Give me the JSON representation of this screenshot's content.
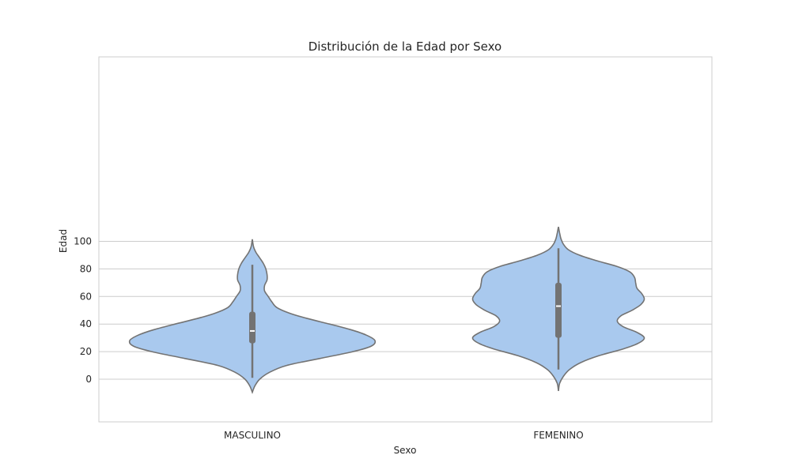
{
  "chart_data": {
    "type": "violin",
    "title": "Distribución de la Edad por Sexo",
    "xlabel": "Sexo",
    "ylabel": "Edad",
    "categories": [
      "MASCULINO",
      "FEMENINO"
    ],
    "yticks": [
      0,
      20,
      40,
      60,
      80,
      100
    ],
    "ylim": [
      -15,
      116
    ],
    "grid": true,
    "colors": {
      "fill": "#a9c9ee",
      "edge": "#737373",
      "box": "#737373",
      "median": "#ffffff",
      "grid": "#cccccc"
    },
    "violins": [
      {
        "category": "MASCULINO",
        "min": 1,
        "q1": 26,
        "median": 35,
        "q3": 49,
        "max": 83,
        "profile": [
          [
            -9.5,
            0.0
          ],
          [
            -5,
            0.02
          ],
          [
            0,
            0.06
          ],
          [
            5,
            0.14
          ],
          [
            10,
            0.28
          ],
          [
            15,
            0.55
          ],
          [
            20,
            0.82
          ],
          [
            24,
            0.97
          ],
          [
            28,
            1.0
          ],
          [
            32,
            0.93
          ],
          [
            36,
            0.8
          ],
          [
            40,
            0.63
          ],
          [
            44,
            0.45
          ],
          [
            48,
            0.3
          ],
          [
            52,
            0.2
          ],
          [
            56,
            0.16
          ],
          [
            60,
            0.13
          ],
          [
            64,
            0.1
          ],
          [
            68,
            0.1
          ],
          [
            72,
            0.12
          ],
          [
            76,
            0.12
          ],
          [
            80,
            0.11
          ],
          [
            84,
            0.09
          ],
          [
            88,
            0.06
          ],
          [
            92,
            0.03
          ],
          [
            96,
            0.01
          ],
          [
            101.5,
            0.0
          ]
        ]
      },
      {
        "category": "FEMENINO",
        "min": 7,
        "q1": 30,
        "median": 53,
        "q3": 70,
        "max": 95,
        "profile": [
          [
            -8.5,
            0.0
          ],
          [
            -3,
            0.01
          ],
          [
            2,
            0.04
          ],
          [
            7,
            0.09
          ],
          [
            12,
            0.18
          ],
          [
            17,
            0.33
          ],
          [
            22,
            0.53
          ],
          [
            26,
            0.65
          ],
          [
            30,
            0.7
          ],
          [
            34,
            0.64
          ],
          [
            38,
            0.53
          ],
          [
            42,
            0.48
          ],
          [
            46,
            0.51
          ],
          [
            50,
            0.6
          ],
          [
            54,
            0.67
          ],
          [
            58,
            0.7
          ],
          [
            62,
            0.68
          ],
          [
            66,
            0.64
          ],
          [
            70,
            0.63
          ],
          [
            74,
            0.62
          ],
          [
            78,
            0.58
          ],
          [
            82,
            0.47
          ],
          [
            86,
            0.31
          ],
          [
            90,
            0.17
          ],
          [
            94,
            0.08
          ],
          [
            98,
            0.04
          ],
          [
            102,
            0.02
          ],
          [
            106,
            0.01
          ],
          [
            110.5,
            0.0
          ]
        ]
      }
    ]
  }
}
